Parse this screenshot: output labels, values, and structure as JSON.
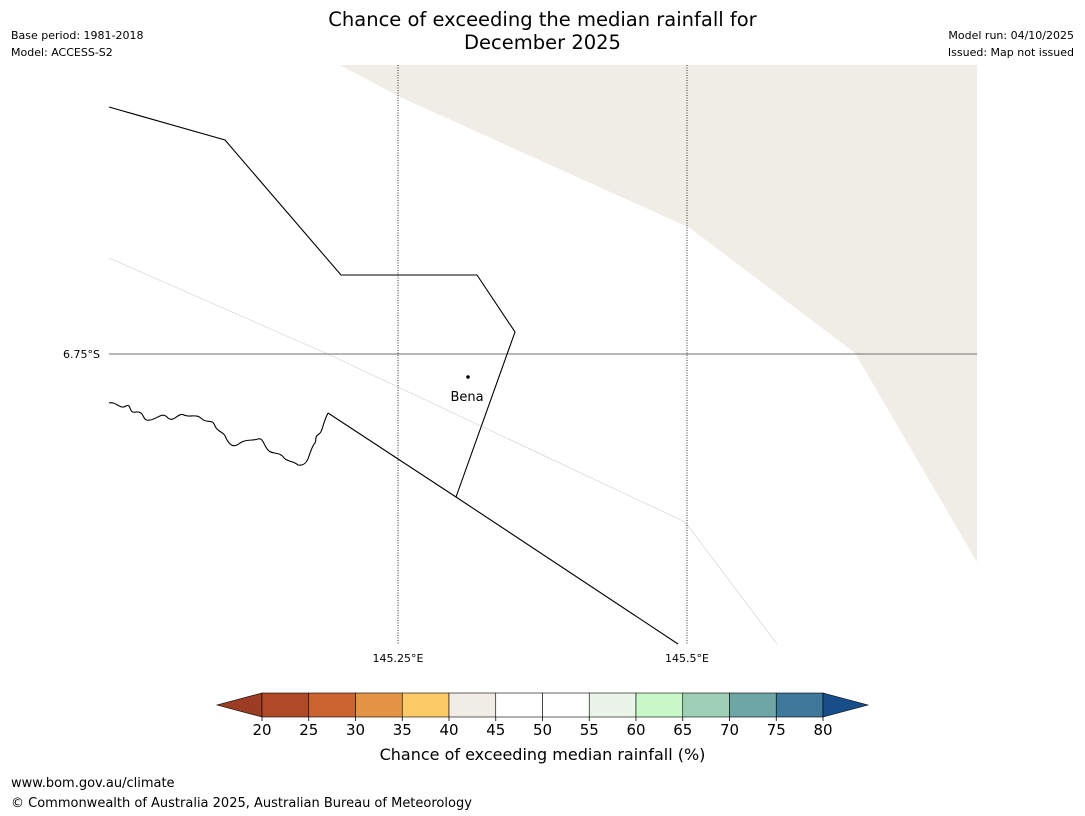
{
  "header": {
    "title_line1": "Chance of exceeding the median rainfall for",
    "title_line2": "December 2025",
    "base_period": "Base period: 1981-2018",
    "model": "Model: ACCESS-S2",
    "model_run": "Model run: 04/10/2025",
    "issued": "Issued: Map not issued"
  },
  "map": {
    "lat_label": "6.75°S",
    "lon_labels": [
      "145.25°E",
      "145.5°E"
    ],
    "place": {
      "name": "Bena"
    },
    "fill_color": "#f0ece6"
  },
  "colorbar": {
    "label": "Chance of exceeding median rainfall (%)",
    "ticks": [
      "20",
      "25",
      "30",
      "35",
      "40",
      "45",
      "50",
      "55",
      "60",
      "65",
      "70",
      "75",
      "80"
    ],
    "under_color": "#9c3c24",
    "over_color": "#174e8a",
    "colors": [
      "#b04a26",
      "#cc6430",
      "#e39445",
      "#fdcb66",
      "#f0ece6",
      "#ffffff",
      "#ffffff",
      "#e8f5e8",
      "#c8f8c8",
      "#9ed0b6",
      "#6ea6a6",
      "#3e789a"
    ]
  },
  "footer": {
    "url": "www.bom.gov.au/climate",
    "copyright": "© Commonwealth of Australia 2025, Australian Bureau of Meteorology"
  }
}
